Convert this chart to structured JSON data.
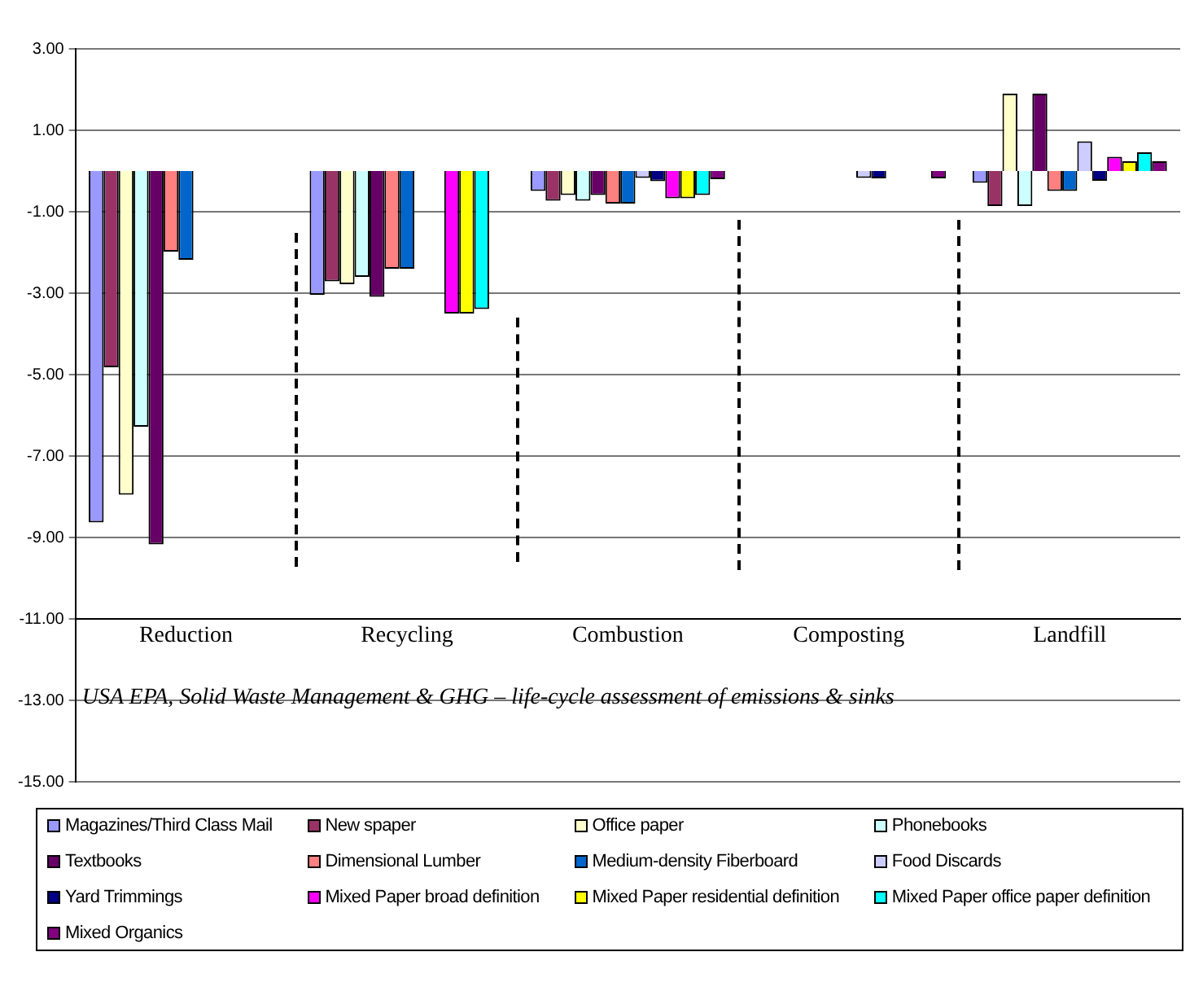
{
  "chart_data": {
    "type": "bar",
    "categories": [
      "Reduction",
      "Recycling",
      "Combustion",
      "Composting",
      "Landfill"
    ],
    "series": [
      {
        "name": "Magazines/Third Class Mail",
        "color": "#9999ff",
        "values": [
          -8.63,
          -3.04,
          -0.49,
          null,
          -0.29
        ]
      },
      {
        "name": "New spaper",
        "color": "#993366",
        "values": [
          -4.82,
          -2.71,
          -0.73,
          null,
          -0.86
        ]
      },
      {
        "name": "Office paper",
        "color": "#ffffcc",
        "values": [
          -7.95,
          -2.78,
          -0.59,
          null,
          1.9
        ]
      },
      {
        "name": "Phonebooks",
        "color": "#ccffff",
        "values": [
          -6.28,
          -2.6,
          -0.73,
          null,
          -0.86
        ]
      },
      {
        "name": "Textbooks",
        "color": "#660066",
        "values": [
          -9.17,
          -3.09,
          -0.59,
          null,
          1.9
        ]
      },
      {
        "name": "Dimensional Lumber",
        "color": "#ff8080",
        "values": [
          -1.98,
          -2.4,
          -0.8,
          null,
          -0.49
        ]
      },
      {
        "name": "Medium-density Fiberboard",
        "color": "#0066cc",
        "values": [
          -2.18,
          -2.4,
          -0.8,
          null,
          -0.49
        ]
      },
      {
        "name": "Food Discards",
        "color": "#ccccff",
        "values": [
          null,
          null,
          -0.17,
          -0.17,
          0.73
        ]
      },
      {
        "name": "Yard Trimmings",
        "color": "#000080",
        "values": [
          null,
          null,
          -0.25,
          -0.18,
          -0.24
        ]
      },
      {
        "name": "Mixed Paper broad definition",
        "color": "#ff00ff",
        "values": [
          null,
          -3.5,
          -0.67,
          null,
          0.35
        ]
      },
      {
        "name": "Mixed Paper residential definition",
        "color": "#ffff00",
        "values": [
          null,
          -3.5,
          -0.67,
          null,
          0.24
        ]
      },
      {
        "name": "Mixed Paper office paper definition",
        "color": "#00ffff",
        "values": [
          null,
          -3.39,
          -0.59,
          null,
          0.46
        ]
      },
      {
        "name": "Mixed Organics",
        "color": "#800080",
        "values": [
          null,
          null,
          -0.2,
          -0.18,
          0.24
        ]
      }
    ],
    "ylim": [
      -15,
      3
    ],
    "yticks": [
      {
        "value": -15,
        "label": "-15.00"
      },
      {
        "value": -13,
        "label": "-13.00"
      },
      {
        "value": -11,
        "label": "-11.00"
      },
      {
        "value": -9,
        "label": "-9.00"
      },
      {
        "value": -7,
        "label": "-7.00"
      },
      {
        "value": -5,
        "label": "-5.00"
      },
      {
        "value": -3,
        "label": "-3.00"
      },
      {
        "value": -1,
        "label": "-1.00"
      },
      {
        "value": 1,
        "label": "1.00"
      },
      {
        "value": 3,
        "label": "3.00"
      }
    ],
    "grid": "y",
    "legend": "bottom",
    "annotations": [
      "USA EPA, Solid Waste Management & GHG – life-cycle assessment of emissions & sinks"
    ]
  }
}
